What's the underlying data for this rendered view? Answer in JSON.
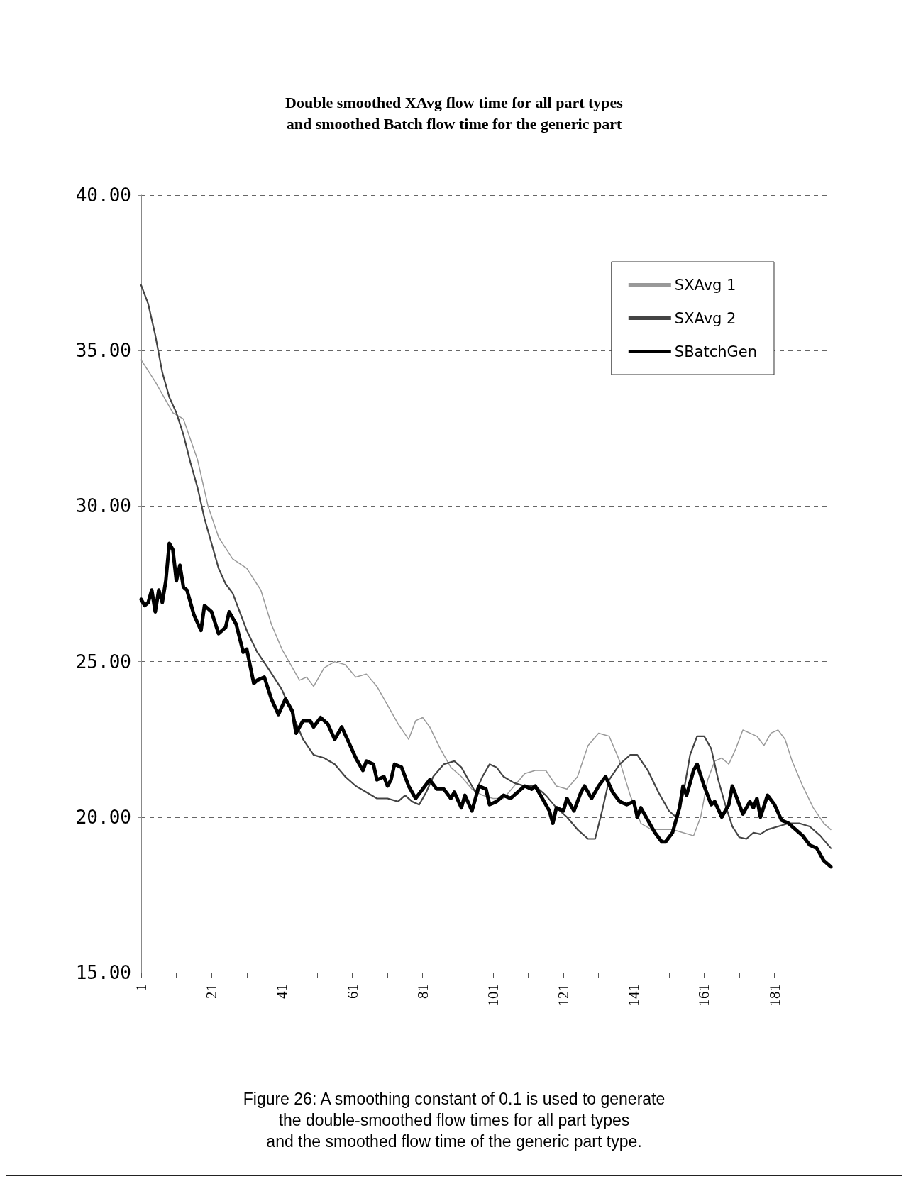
{
  "chart_data": {
    "type": "line",
    "title": "Double smoothed XAvg flow time for all part types\nand smoothed Batch flow time for the generic part",
    "annotations": [
      "Figure 26: A smoothing constant of 0.1 is used to generate\nthe double-smoothed flow times for all part types\nand the smoothed flow time of the generic part type."
    ],
    "xlim": [
      1,
      197
    ],
    "xticks": [
      1,
      {
        "value": 11,
        "label": null
      },
      21,
      {
        "value": 31,
        "label": null
      },
      41,
      {
        "value": 51,
        "label": null
      },
      61,
      {
        "value": 71,
        "label": null
      },
      81,
      {
        "value": 91,
        "label": null
      },
      101,
      {
        "value": 111,
        "label": null
      },
      121,
      {
        "value": 131,
        "label": null
      },
      141,
      {
        "value": 151,
        "label": null
      },
      161,
      {
        "value": 171,
        "label": null
      },
      181,
      {
        "value": 191,
        "label": null
      }
    ],
    "ylim": [
      15,
      40
    ],
    "yticks": [
      {
        "value": 15,
        "label": "15.00"
      },
      {
        "value": 20,
        "label": "20.00"
      },
      {
        "value": 25,
        "label": "25.00"
      },
      {
        "value": 30,
        "label": "30.00"
      },
      {
        "value": 35,
        "label": "35.00"
      },
      {
        "value": 40,
        "label": "40.00"
      }
    ],
    "grid": "y",
    "legend": "top right",
    "marker": "none",
    "series": [
      {
        "name": "SXAvg 1",
        "color": "#999999",
        "x": [
          1,
          5,
          10,
          13,
          17,
          20,
          23,
          27,
          31,
          35,
          38,
          41,
          44,
          46,
          48,
          50,
          53,
          56,
          59,
          62,
          65,
          68,
          71,
          74,
          77,
          79,
          81,
          83,
          86,
          89,
          92,
          95,
          98,
          101,
          104,
          107,
          110,
          113,
          116,
          119,
          122,
          125,
          128,
          131,
          134,
          137,
          140,
          143,
          146,
          149,
          152,
          155,
          158,
          160,
          162,
          164,
          166,
          168,
          170,
          172,
          174,
          176,
          178,
          180,
          182,
          184,
          186,
          189,
          192,
          195,
          197
        ],
        "values": [
          34.7,
          34.0,
          33.0,
          32.8,
          31.5,
          30.0,
          29.0,
          28.3,
          28.0,
          27.3,
          26.2,
          25.4,
          24.8,
          24.4,
          24.5,
          24.2,
          24.8,
          25.0,
          24.9,
          24.5,
          24.6,
          24.2,
          23.6,
          23.0,
          22.5,
          23.1,
          23.2,
          22.9,
          22.2,
          21.6,
          21.3,
          20.9,
          20.7,
          20.6,
          20.6,
          21.0,
          21.4,
          21.5,
          21.5,
          21.0,
          20.9,
          21.3,
          22.3,
          22.7,
          22.6,
          21.8,
          20.7,
          19.8,
          19.6,
          19.6,
          19.6,
          19.5,
          19.4,
          20.0,
          21.2,
          21.8,
          21.9,
          21.7,
          22.2,
          22.8,
          22.7,
          22.6,
          22.3,
          22.7,
          22.8,
          22.5,
          21.8,
          21.0,
          20.3,
          19.8,
          19.6
        ]
      },
      {
        "name": "SXAvg 2",
        "color": "#444444",
        "x": [
          1,
          3,
          5,
          7,
          9,
          11,
          13,
          15,
          17,
          19,
          21,
          23,
          25,
          27,
          29,
          31,
          34,
          37,
          41,
          44,
          47,
          50,
          53,
          56,
          59,
          62,
          65,
          68,
          71,
          74,
          76,
          78,
          80,
          82,
          84,
          87,
          90,
          92,
          94,
          96,
          98,
          100,
          102,
          104,
          107,
          110,
          113,
          116,
          119,
          122,
          125,
          128,
          130,
          132,
          134,
          137,
          140,
          142,
          145,
          148,
          151,
          153,
          155,
          157,
          159,
          161,
          163,
          165,
          167,
          169,
          171,
          173,
          175,
          177,
          179,
          182,
          185,
          188,
          191,
          194,
          197
        ],
        "values": [
          37.1,
          36.5,
          35.5,
          34.3,
          33.5,
          33.0,
          32.3,
          31.4,
          30.6,
          29.6,
          28.8,
          28.0,
          27.5,
          27.2,
          26.6,
          26.0,
          25.3,
          24.8,
          24.1,
          23.3,
          22.5,
          22.0,
          21.9,
          21.7,
          21.3,
          21.0,
          20.8,
          20.6,
          20.6,
          20.5,
          20.7,
          20.5,
          20.4,
          20.8,
          21.3,
          21.7,
          21.8,
          21.6,
          21.2,
          20.8,
          21.3,
          21.7,
          21.6,
          21.3,
          21.1,
          21.0,
          21.0,
          20.7,
          20.3,
          20.0,
          19.6,
          19.3,
          19.3,
          20.2,
          21.2,
          21.7,
          22.0,
          22.0,
          21.5,
          20.8,
          20.2,
          20.0,
          20.7,
          22.0,
          22.6,
          22.6,
          22.2,
          21.2,
          20.4,
          19.7,
          19.35,
          19.3,
          19.5,
          19.45,
          19.6,
          19.7,
          19.8,
          19.8,
          19.7,
          19.4,
          19.0
        ]
      },
      {
        "name": "SBatchGen",
        "color": "#000000",
        "x": [
          1,
          2,
          3,
          4,
          5,
          6,
          7,
          8,
          9,
          10,
          11,
          12,
          13,
          14,
          16,
          18,
          19,
          21,
          23,
          25,
          26,
          28,
          30,
          31,
          33,
          34,
          36,
          38,
          40,
          42,
          44,
          45,
          47,
          49,
          50,
          52,
          54,
          56,
          58,
          60,
          62,
          64,
          65,
          67,
          68,
          70,
          71,
          72,
          73,
          75,
          77,
          79,
          81,
          83,
          85,
          87,
          89,
          90,
          92,
          93,
          95,
          97,
          99,
          100,
          102,
          104,
          106,
          108,
          110,
          112,
          113,
          115,
          117,
          118,
          119,
          121,
          122,
          124,
          126,
          127,
          129,
          131,
          133,
          135,
          137,
          139,
          141,
          142,
          143,
          145,
          147,
          149,
          150,
          152,
          154,
          155,
          156,
          158,
          159,
          161,
          163,
          164,
          166,
          168,
          169,
          171,
          172,
          174,
          175,
          176,
          177,
          179,
          181,
          183,
          185,
          187,
          189,
          191,
          193,
          195,
          197
        ],
        "values": [
          27.0,
          26.8,
          26.9,
          27.3,
          26.6,
          27.3,
          26.9,
          27.6,
          28.8,
          28.6,
          27.6,
          28.1,
          27.4,
          27.3,
          26.5,
          26.0,
          26.8,
          26.6,
          25.9,
          26.1,
          26.6,
          26.2,
          25.3,
          25.4,
          24.3,
          24.4,
          24.5,
          23.8,
          23.3,
          23.8,
          23.4,
          22.7,
          23.1,
          23.1,
          22.9,
          23.2,
          23.0,
          22.5,
          22.9,
          22.4,
          21.9,
          21.5,
          21.8,
          21.7,
          21.2,
          21.3,
          21.0,
          21.2,
          21.7,
          21.6,
          21.0,
          20.6,
          20.9,
          21.2,
          20.9,
          20.9,
          20.6,
          20.8,
          20.3,
          20.7,
          20.2,
          21.0,
          20.9,
          20.4,
          20.5,
          20.7,
          20.6,
          20.8,
          21.0,
          20.9,
          21.0,
          20.6,
          20.2,
          19.8,
          20.3,
          20.2,
          20.6,
          20.2,
          20.8,
          21.0,
          20.6,
          21.0,
          21.3,
          20.8,
          20.5,
          20.4,
          20.5,
          20.0,
          20.3,
          19.9,
          19.5,
          19.2,
          19.2,
          19.5,
          20.3,
          21.0,
          20.7,
          21.5,
          21.7,
          21.0,
          20.4,
          20.5,
          20.0,
          20.4,
          21.0,
          20.4,
          20.1,
          20.5,
          20.3,
          20.6,
          20.0,
          20.7,
          20.4,
          19.9,
          19.8,
          19.6,
          19.4,
          19.1,
          19.0,
          18.6,
          18.4
        ]
      }
    ]
  }
}
